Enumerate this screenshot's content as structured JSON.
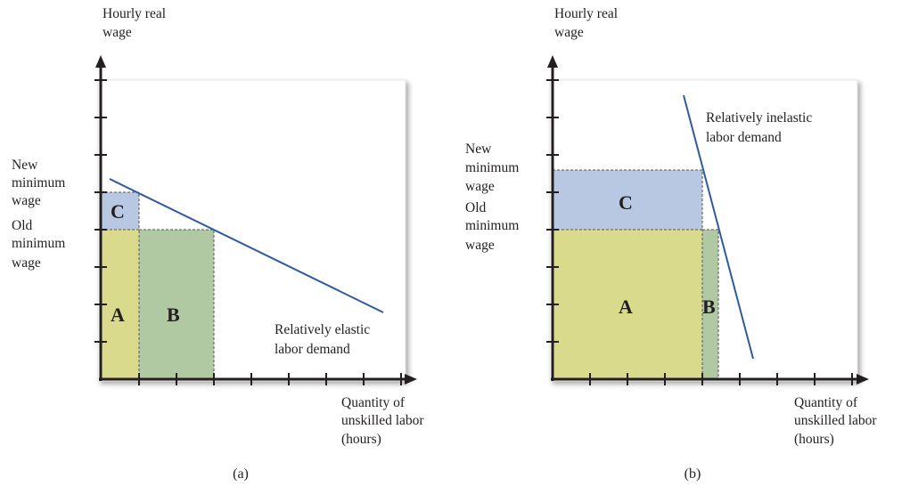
{
  "panels": [
    {
      "id": "a",
      "caption": "(a)",
      "y_axis_label": [
        "Hourly real",
        "wage"
      ],
      "x_axis_label": [
        "Quantity of",
        "unskilled labor",
        "(hours)"
      ],
      "new_min_wage_label": [
        "New",
        "minimum",
        "wage"
      ],
      "old_min_wage_label": [
        "Old",
        "minimum",
        "wage"
      ],
      "demand_label": [
        "Relatively elastic",
        "labor demand"
      ],
      "area_labels": {
        "A": "A",
        "B": "B",
        "C": "C"
      }
    },
    {
      "id": "b",
      "caption": "(b)",
      "y_axis_label": [
        "Hourly real",
        "wage"
      ],
      "x_axis_label": [
        "Quantity of",
        "unskilled labor",
        "(hours)"
      ],
      "new_min_wage_label": [
        "New",
        "minimum",
        "wage"
      ],
      "old_min_wage_label": [
        "Old",
        "minimum",
        "wage"
      ],
      "demand_label": [
        "Relatively inelastic",
        "labor demand"
      ],
      "area_labels": {
        "A": "A",
        "B": "B",
        "C": "C"
      }
    }
  ],
  "colors": {
    "area_A": "#d9da8c",
    "area_B": "#b1c9a2",
    "area_C": "#b8c8e2",
    "demand_line": "#2e5aa0",
    "axis": "#231f20",
    "panel_shadow": "#d4d4d4"
  }
}
